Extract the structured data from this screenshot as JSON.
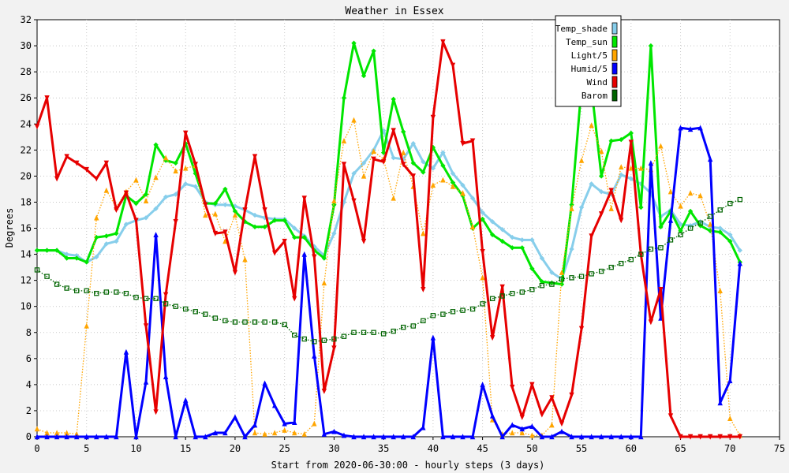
{
  "chart_data": {
    "type": "line",
    "title": "Weather in Essex",
    "xlabel": "Start from 2020-06-30:00 - hourly steps (3 days)",
    "ylabel": "Degrees",
    "xlim": [
      0,
      75
    ],
    "ylim": [
      0,
      32
    ],
    "xticks": [
      0,
      5,
      10,
      15,
      20,
      25,
      30,
      35,
      40,
      45,
      50,
      55,
      60,
      65,
      70,
      75
    ],
    "yticks": [
      0,
      2,
      4,
      6,
      8,
      10,
      12,
      14,
      16,
      18,
      20,
      22,
      24,
      26,
      28,
      30,
      32
    ],
    "grid": true,
    "legend_position": "top-right",
    "series": [
      {
        "name": "Temp_shade",
        "color": "#87ceeb",
        "marker": "diamond",
        "dash": "solid",
        "x": [
          0,
          1,
          2,
          3,
          4,
          5,
          6,
          7,
          8,
          9,
          10,
          11,
          12,
          13,
          14,
          15,
          16,
          17,
          18,
          19,
          20,
          21,
          22,
          23,
          24,
          25,
          26,
          27,
          28,
          29,
          30,
          31,
          32,
          33,
          34,
          35,
          36,
          37,
          38,
          39,
          40,
          41,
          42,
          43,
          44,
          45,
          46,
          47,
          48,
          49,
          50,
          51,
          52,
          53,
          54,
          55,
          56,
          57,
          58,
          59,
          60,
          61,
          62,
          63,
          64,
          65,
          66,
          67,
          68,
          69,
          70,
          71
        ],
        "y": [
          14.3,
          14.3,
          14.3,
          14.0,
          13.9,
          13.4,
          13.8,
          14.8,
          15.0,
          16.3,
          16.6,
          16.8,
          17.5,
          18.4,
          18.6,
          19.4,
          19.2,
          18.0,
          17.8,
          17.8,
          17.7,
          17.4,
          17.0,
          16.8,
          16.7,
          16.7,
          16.0,
          15.4,
          14.6,
          13.9,
          15.6,
          18.0,
          20.2,
          21.0,
          22.0,
          23.5,
          21.4,
          21.3,
          22.5,
          21.1,
          20.6,
          21.8,
          20.2,
          19.3,
          18.3,
          17.2,
          16.5,
          15.9,
          15.3,
          15.1,
          15.1,
          13.7,
          12.6,
          12.1,
          14.4,
          17.6,
          19.4,
          18.8,
          18.6,
          20.1,
          19.8,
          19.4,
          18.7,
          16.9,
          17.4,
          16.3,
          16.2,
          16.5,
          16.1,
          16.0,
          15.5,
          14.3
        ]
      },
      {
        "name": "Temp_sun",
        "color": "#00e600",
        "marker": "diamond",
        "dash": "solid",
        "x": [
          0,
          1,
          2,
          3,
          4,
          5,
          6,
          7,
          8,
          9,
          10,
          11,
          12,
          13,
          14,
          15,
          16,
          17,
          18,
          19,
          20,
          21,
          22,
          23,
          24,
          25,
          26,
          27,
          28,
          29,
          30,
          31,
          32,
          33,
          34,
          35,
          36,
          37,
          38,
          39,
          40,
          41,
          42,
          43,
          44,
          45,
          46,
          47,
          48,
          49,
          50,
          51,
          52,
          53,
          54,
          55,
          56,
          57,
          58,
          59,
          60,
          61,
          62,
          63,
          64,
          65,
          66,
          67,
          68,
          69,
          70,
          71
        ],
        "y": [
          14.3,
          14.3,
          14.3,
          13.7,
          13.7,
          13.4,
          15.3,
          15.4,
          15.6,
          18.5,
          17.9,
          18.6,
          22.4,
          21.2,
          21.0,
          22.5,
          20.2,
          17.9,
          17.9,
          19.0,
          17.3,
          16.5,
          16.1,
          16.1,
          16.6,
          16.6,
          15.3,
          15.3,
          14.3,
          13.7,
          17.8,
          26.0,
          30.2,
          27.7,
          29.6,
          21.8,
          25.9,
          23.4,
          21.0,
          20.3,
          22.2,
          20.8,
          19.5,
          18.5,
          16.0,
          16.7,
          15.5,
          15.0,
          14.5,
          14.5,
          12.9,
          11.9,
          11.8,
          11.7,
          17.8,
          26.9,
          26.8,
          20.0,
          22.7,
          22.8,
          23.3,
          17.6,
          30.0,
          16.1,
          17.3,
          15.8,
          17.3,
          16.2,
          15.8,
          15.7,
          15.0,
          13.4
        ]
      },
      {
        "name": "Light/5",
        "color": "#ffa500",
        "marker": "triangle",
        "dash": "dotted",
        "x": [
          0,
          1,
          2,
          3,
          4,
          5,
          6,
          7,
          8,
          9,
          10,
          11,
          12,
          13,
          14,
          15,
          16,
          17,
          18,
          19,
          20,
          21,
          22,
          23,
          24,
          25,
          26,
          27,
          28,
          29,
          30,
          31,
          32,
          33,
          34,
          35,
          36,
          37,
          38,
          39,
          40,
          41,
          42,
          43,
          44,
          45,
          46,
          47,
          48,
          49,
          50,
          51,
          52,
          53,
          54,
          55,
          56,
          57,
          58,
          59,
          60,
          61,
          62,
          63,
          64,
          65,
          66,
          67,
          68,
          69,
          70,
          71
        ],
        "y": [
          0.6,
          0.3,
          0.3,
          0.3,
          0.2,
          8.5,
          16.8,
          18.9,
          17.6,
          18.8,
          19.7,
          18.1,
          19.9,
          21.4,
          20.4,
          20.6,
          20.8,
          17.0,
          17.1,
          15.0,
          17.0,
          13.6,
          0.3,
          0.2,
          0.3,
          0.5,
          0.3,
          0.2,
          1.0,
          11.8,
          18.1,
          22.7,
          24.3,
          20.0,
          21.9,
          21.3,
          18.3,
          21.8,
          19.2,
          15.6,
          19.3,
          19.7,
          19.2,
          18.7,
          16.1,
          12.2,
          1.3,
          0.2,
          0.3,
          0.3,
          0.1,
          0.1,
          0.9,
          12.6,
          17.5,
          21.2,
          23.9,
          21.9,
          17.5,
          20.7,
          20.6,
          20.6,
          20.5,
          22.3,
          18.8,
          17.7,
          18.7,
          18.5,
          16.3,
          11.2,
          1.4,
          0.1
        ]
      },
      {
        "name": "Humid/5",
        "color": "#0000ff",
        "marker": "triangle-up",
        "dash": "solid",
        "x": [
          0,
          1,
          2,
          3,
          4,
          5,
          6,
          7,
          8,
          9,
          10,
          11,
          12,
          13,
          14,
          15,
          16,
          17,
          18,
          19,
          20,
          21,
          22,
          23,
          24,
          25,
          26,
          27,
          28,
          29,
          30,
          31,
          32,
          33,
          34,
          35,
          36,
          37,
          38,
          39,
          40,
          41,
          42,
          43,
          44,
          45,
          46,
          47,
          48,
          49,
          50,
          51,
          52,
          53,
          54,
          55,
          56,
          57,
          58,
          59,
          60,
          61,
          62,
          63,
          64,
          65,
          66,
          67,
          68,
          69,
          70,
          71
        ],
        "y": [
          0,
          0,
          0,
          0,
          0,
          0,
          0,
          0,
          0,
          6.5,
          0,
          4.2,
          15.5,
          4.6,
          0,
          2.8,
          0,
          0,
          0.3,
          0.3,
          1.5,
          0,
          0.9,
          4.1,
          2.4,
          1.0,
          1.1,
          14.0,
          6.2,
          0.2,
          0.4,
          0.1,
          0,
          0,
          0,
          0,
          0,
          0,
          0,
          0.7,
          7.6,
          0,
          0,
          0,
          0,
          4.0,
          1.6,
          0,
          0.9,
          0.6,
          0.8,
          0,
          0,
          0.4,
          0,
          0,
          0,
          0,
          0,
          0,
          0,
          0,
          21.0,
          9.1,
          16.6,
          23.7,
          23.6,
          23.7,
          21.3,
          2.6,
          4.3,
          13.3
        ]
      },
      {
        "name": "Wind",
        "color": "#e60000",
        "marker": "triangle-down",
        "dash": "solid",
        "x": [
          0,
          1,
          2,
          3,
          4,
          5,
          6,
          7,
          8,
          9,
          10,
          11,
          12,
          13,
          14,
          15,
          16,
          17,
          18,
          19,
          20,
          21,
          22,
          23,
          24,
          25,
          26,
          27,
          28,
          29,
          30,
          31,
          32,
          33,
          34,
          35,
          36,
          37,
          38,
          39,
          40,
          41,
          42,
          43,
          44,
          45,
          46,
          47,
          48,
          49,
          50,
          51,
          52,
          53,
          54,
          55,
          56,
          57,
          58,
          59,
          60,
          61,
          62,
          63,
          64,
          65,
          66,
          67,
          68,
          69,
          70,
          71
        ],
        "y": [
          23.8,
          26.0,
          19.8,
          21.5,
          21.0,
          20.5,
          19.8,
          21.0,
          17.4,
          18.7,
          16.6,
          8.5,
          1.9,
          10.9,
          16.5,
          23.3,
          20.9,
          17.8,
          15.6,
          15.7,
          12.6,
          17.4,
          21.5,
          17.4,
          14.1,
          15.0,
          10.6,
          18.3,
          13.8,
          3.5,
          6.8,
          20.9,
          18.1,
          15.0,
          21.3,
          21.1,
          23.5,
          20.9,
          20.0,
          11.3,
          24.5,
          30.3,
          28.5,
          22.5,
          22.7,
          14.2,
          7.6,
          11.5,
          3.8,
          1.5,
          4.0,
          1.7,
          3.0,
          1.0,
          3.2,
          8.3,
          15.4,
          17.1,
          18.9,
          16.6,
          22.6,
          14.0,
          8.8,
          11.3,
          1.6,
          0,
          0,
          0,
          0,
          0,
          0,
          0
        ]
      },
      {
        "name": "Barom",
        "color": "#006400",
        "marker": "square",
        "dash": "dotted",
        "x": [
          0,
          1,
          2,
          3,
          4,
          5,
          6,
          7,
          8,
          9,
          10,
          11,
          12,
          13,
          14,
          15,
          16,
          17,
          18,
          19,
          20,
          21,
          22,
          23,
          24,
          25,
          26,
          27,
          28,
          29,
          30,
          31,
          32,
          33,
          34,
          35,
          36,
          37,
          38,
          39,
          40,
          41,
          42,
          43,
          44,
          45,
          46,
          47,
          48,
          49,
          50,
          51,
          52,
          53,
          54,
          55,
          56,
          57,
          58,
          59,
          60,
          61,
          62,
          63,
          64,
          65,
          66,
          67,
          68,
          69,
          70,
          71
        ],
        "y": [
          12.8,
          12.3,
          11.7,
          11.4,
          11.2,
          11.2,
          11.0,
          11.1,
          11.1,
          11.0,
          10.7,
          10.6,
          10.6,
          10.2,
          10.0,
          9.8,
          9.6,
          9.4,
          9.1,
          8.9,
          8.8,
          8.8,
          8.8,
          8.8,
          8.8,
          8.6,
          7.8,
          7.5,
          7.3,
          7.4,
          7.5,
          7.7,
          8.0,
          8.0,
          8.0,
          7.9,
          8.1,
          8.4,
          8.5,
          8.9,
          9.3,
          9.4,
          9.6,
          9.7,
          9.8,
          10.2,
          10.6,
          10.8,
          11.0,
          11.1,
          11.3,
          11.6,
          11.7,
          12.1,
          12.2,
          12.3,
          12.5,
          12.7,
          13.0,
          13.3,
          13.6,
          14.0,
          14.4,
          14.5,
          15.1,
          15.5,
          16.0,
          16.4,
          16.9,
          17.4,
          17.9,
          18.2
        ]
      }
    ]
  }
}
